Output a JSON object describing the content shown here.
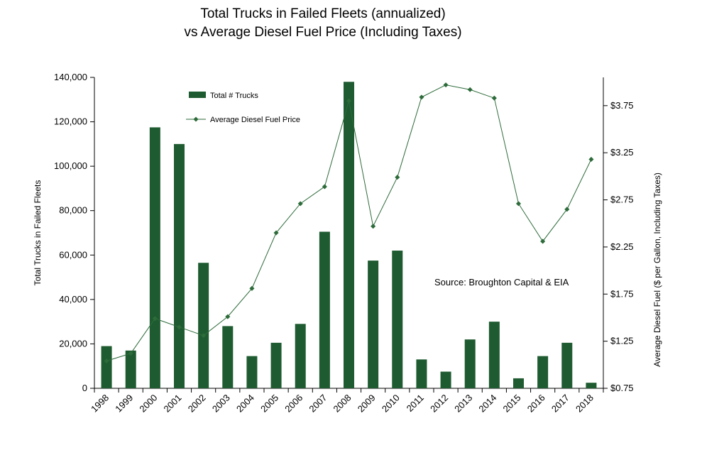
{
  "chart_data": {
    "type": "bar",
    "title_line1": "Total Trucks in Failed Fleets (annualized)",
    "title_line2": "vs Average Diesel Fuel Price (Including Taxes)",
    "categories": [
      "1998",
      "1999",
      "2000",
      "2001",
      "2002",
      "2003",
      "2004",
      "2005",
      "2006",
      "2007",
      "2008",
      "2009",
      "2010",
      "2011",
      "2012",
      "2013",
      "2014",
      "2015",
      "2016",
      "2017",
      "2018"
    ],
    "series": [
      {
        "name": "Total # Trucks",
        "type": "bar",
        "axis": "left",
        "color": "#1e5b30",
        "values": [
          19000,
          17000,
          117500,
          110000,
          56500,
          28000,
          14500,
          20500,
          29000,
          70500,
          138000,
          57500,
          62000,
          13000,
          7500,
          22000,
          30000,
          4500,
          14500,
          20500,
          2500
        ]
      },
      {
        "name": "Average Diesel Fuel Price",
        "type": "line",
        "axis": "right",
        "color": "#2d6b3a",
        "values": [
          1.04,
          1.12,
          1.49,
          1.4,
          1.31,
          1.51,
          1.81,
          2.4,
          2.71,
          2.89,
          3.8,
          2.47,
          2.99,
          3.84,
          3.97,
          3.92,
          3.83,
          2.71,
          2.31,
          2.65,
          3.18
        ]
      }
    ],
    "y_left": {
      "label": "Total Trucks in Failed Fleets",
      "ylim": [
        0,
        140000
      ],
      "ticks": [
        0,
        20000,
        40000,
        60000,
        80000,
        100000,
        120000,
        140000
      ],
      "tick_labels": [
        "0",
        "20,000",
        "40,000",
        "60,000",
        "80,000",
        "100,000",
        "120,000",
        "140,000"
      ]
    },
    "y_right": {
      "label": "Average Diesel Fuel ($ per Gallon, Including Taxes)",
      "ylim": [
        0.75,
        4.05
      ],
      "ticks": [
        0.75,
        1.25,
        1.75,
        2.25,
        2.75,
        3.25,
        3.75
      ],
      "tick_labels": [
        "$0.75",
        "$1.25",
        "$1.75",
        "$2.25",
        "$2.75",
        "$3.25",
        "$3.75"
      ]
    },
    "annotation": "Source: Broughton Capital & EIA",
    "legend_position": "top-left"
  }
}
